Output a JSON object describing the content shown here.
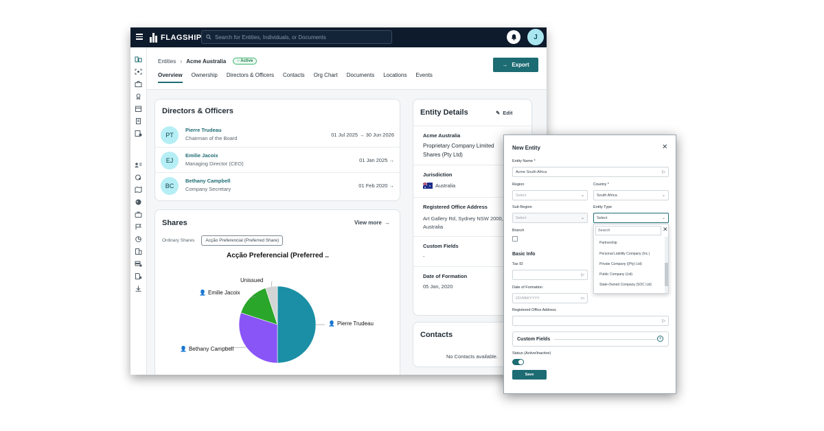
{
  "topbar": {
    "brand": "FLAGSHIP",
    "search_placeholder": "Search for Entities, Individuals, or Documents",
    "avatar_initial": "J"
  },
  "breadcrumb": {
    "root": "Entities",
    "current": "Acme Australia",
    "status": "Active"
  },
  "export_label": "Export",
  "tabs": [
    "Overview",
    "Ownership",
    "Directors & Officers",
    "Contacts",
    "Org Chart",
    "Documents",
    "Locations",
    "Events"
  ],
  "directors": {
    "title": "Directors & Officers",
    "rows": [
      {
        "initials": "PT",
        "name": "Pierre Trudeau",
        "role": "Chairman of the Board",
        "date": "01 Jul 2025 → 30 Jun 2026"
      },
      {
        "initials": "EJ",
        "name": "Emilie Jacoix",
        "role": "Managing Director (CEO)",
        "date": "01 Jan 2025 →"
      },
      {
        "initials": "BC",
        "name": "Bethany Campbell",
        "role": "Company Secretary",
        "date": "01 Feb 2020 →"
      }
    ]
  },
  "shares": {
    "title": "Shares",
    "view_more": "View more",
    "tab_ordinary": "Ordinary Shares",
    "tab_preferred": "Acção Preferencial (Preferred Share)",
    "chart_title": "Acção Preferencial (Preferred ..",
    "chart_data": {
      "type": "pie",
      "title": "Acção Preferencial (Preferred ..",
      "slices": [
        {
          "label": "Pierre Trudeau",
          "value": 50,
          "color": "#1a8fa5"
        },
        {
          "label": "Bethany Campbell",
          "value": 30,
          "color": "#8a55f7"
        },
        {
          "label": "Emilie Jacoix",
          "value": 15,
          "color": "#2aa62a"
        },
        {
          "label": "Unissued",
          "value": 5,
          "color": "#d2d5d4"
        }
      ]
    }
  },
  "entity_details": {
    "title": "Entity Details",
    "edit_label": "Edit",
    "name": "Acme Australia",
    "type_line1": "Proprietary Company Limited",
    "type_line2": "Shares (Pty Ltd)",
    "jurisdiction_label": "Jurisdiction",
    "jurisdiction_value": "Australia",
    "address_label": "Registered Office Address",
    "address_line1": "Art Gallery Rd, Sydney NSW 2000,",
    "address_line2": "Australia",
    "custom_fields_label": "Custom Fields",
    "custom_fields_value": "-",
    "formation_label": "Date of Formation",
    "formation_value": "05 Jan, 2020"
  },
  "contacts": {
    "title": "Contacts",
    "empty": "No Contacts available."
  },
  "modal": {
    "title": "New Entity",
    "entity_name_label": "Entity Name *",
    "entity_name_value": "Acme South Africa",
    "region_label": "Region",
    "region_value": "Select",
    "country_label": "Country *",
    "country_value": "South Africa",
    "sub_region_label": "Sub Region",
    "sub_region_value": "Select",
    "entity_type_label": "Entity Type",
    "entity_type_value": "Select",
    "branch_label": "Branch",
    "basic_info": "Basic Info",
    "tax_id_label": "Tax ID",
    "formation_label": "Date of Formation",
    "formation_placeholder": "DD/MM/YYYY",
    "address_label": "Registered Office Address",
    "custom_fields": "Custom Fields",
    "status_label": "Status (Active/Inactive)",
    "save_label": "Save",
    "dropdown": {
      "search_placeholder": "Search",
      "options": [
        "Partnership",
        "Personal Liability Company (Inc.)",
        "Private Company ((Pty) Ltd)",
        "Public Company (Ltd)",
        "State-Owned Company (SOC Ltd)"
      ]
    }
  },
  "colors": {
    "navy": "#0e1b2c",
    "teal": "#1d6b73",
    "active_green": "#3cb371"
  }
}
